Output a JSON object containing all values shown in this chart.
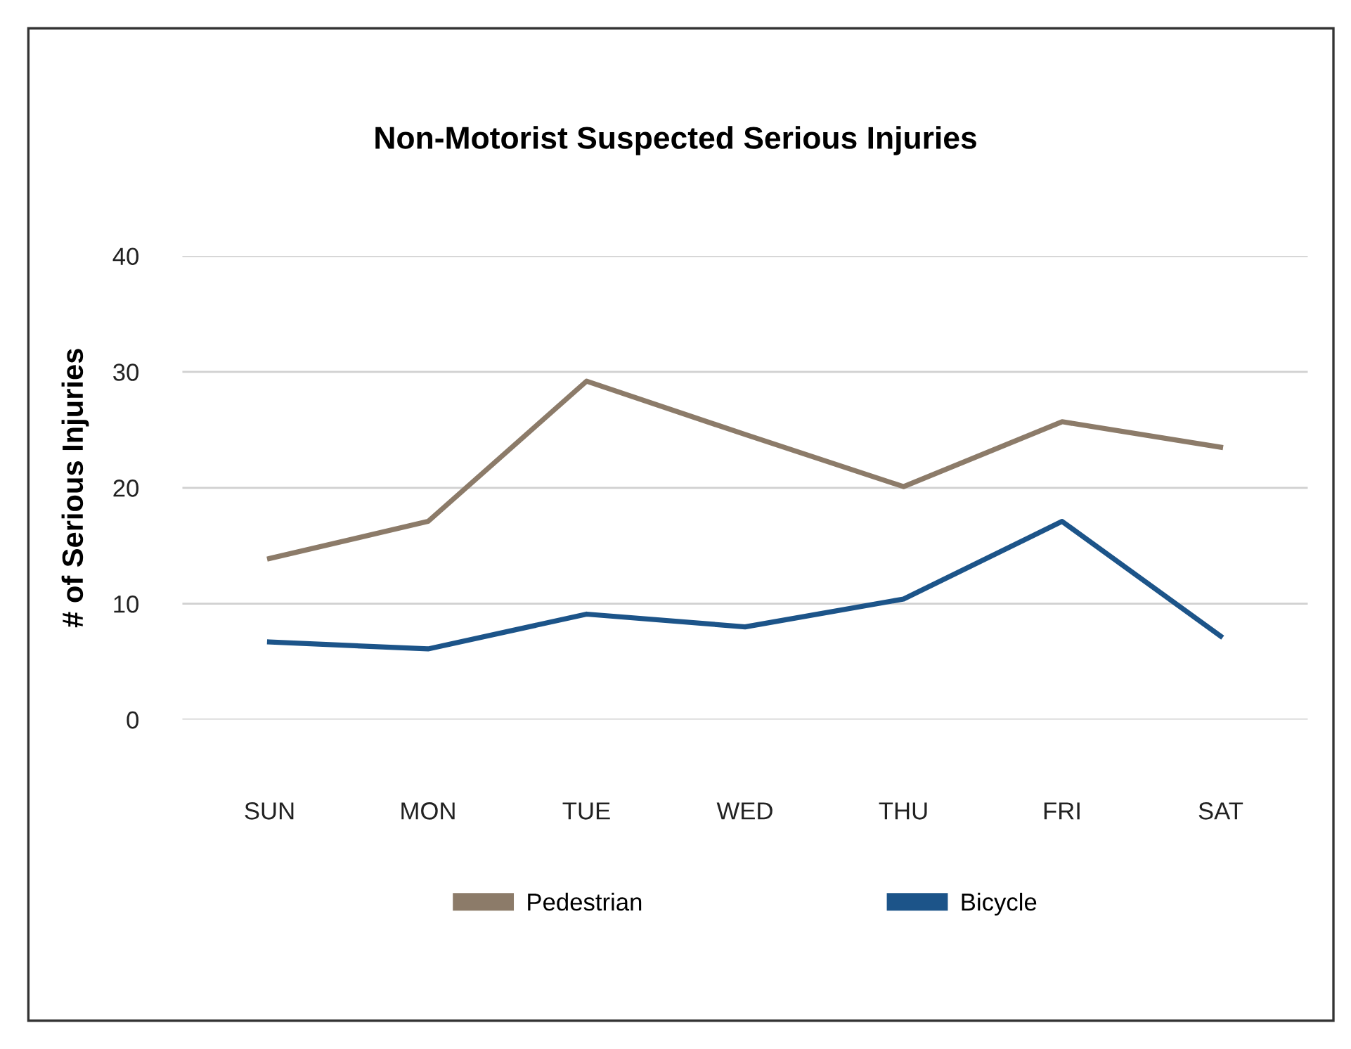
{
  "chart_data": {
    "type": "line",
    "title": "Non-Motorist Suspected Serious Injuries",
    "ylabel": "# of Serious Injuries",
    "categories": [
      "SUN",
      "MON",
      "TUE",
      "WED",
      "THU",
      "FRI",
      "SAT"
    ],
    "series": [
      {
        "name": "Pedestrian",
        "color": "#8c7b69",
        "values": [
          13.9,
          17.1,
          29.2,
          24.6,
          20.1,
          25.7,
          23.5
        ]
      },
      {
        "name": "Bicycle",
        "color": "#1c5489",
        "values": [
          6.7,
          6.1,
          9.1,
          8.0,
          10.4,
          17.1,
          7.2
        ]
      }
    ],
    "ylim": [
      0,
      40
    ],
    "yticks": [
      0,
      10,
      20,
      30,
      40
    ],
    "grid": "y",
    "legend": "bottom",
    "marker": "none",
    "line_style": "solid"
  }
}
